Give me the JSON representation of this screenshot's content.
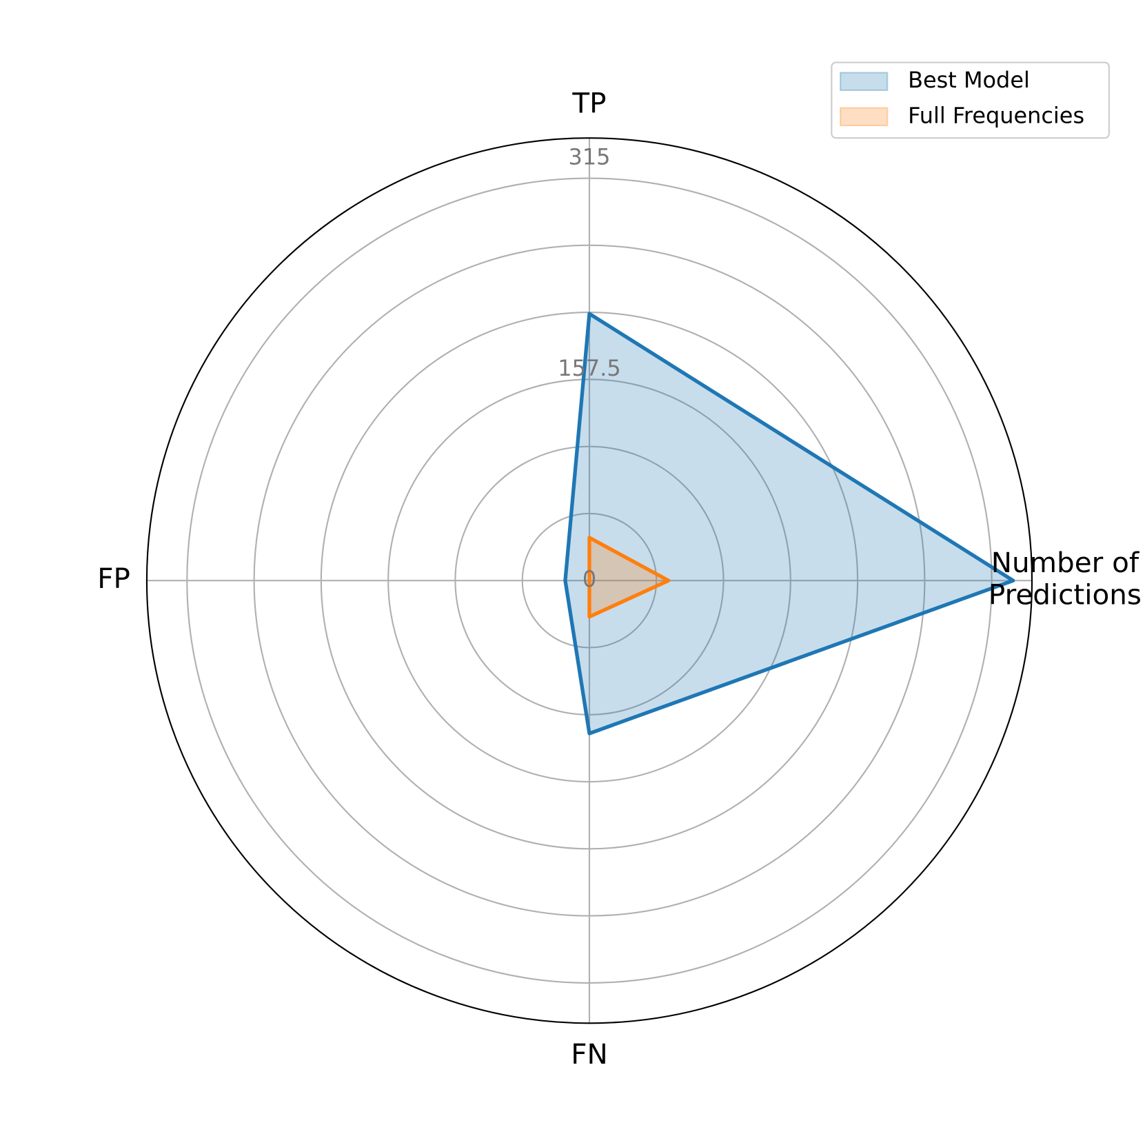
{
  "chart_data": {
    "type": "radar",
    "categories": [
      "Number of\nPredictions",
      "TP",
      "FP",
      "FN"
    ],
    "series": [
      {
        "name": "Best Model",
        "color": "#1f77b4",
        "values": [
          316,
          199,
          18,
          114
        ]
      },
      {
        "name": "Full Frequencies",
        "color": "#ff7f0e",
        "values": [
          59,
          32,
          0,
          27
        ]
      }
    ],
    "ylim": [
      0,
      330
    ],
    "yticks": [
      0,
      157.5,
      315
    ],
    "grid_rings": [
      50,
      100,
      150,
      200,
      250,
      300
    ],
    "grid": true,
    "legend": "upper right"
  }
}
